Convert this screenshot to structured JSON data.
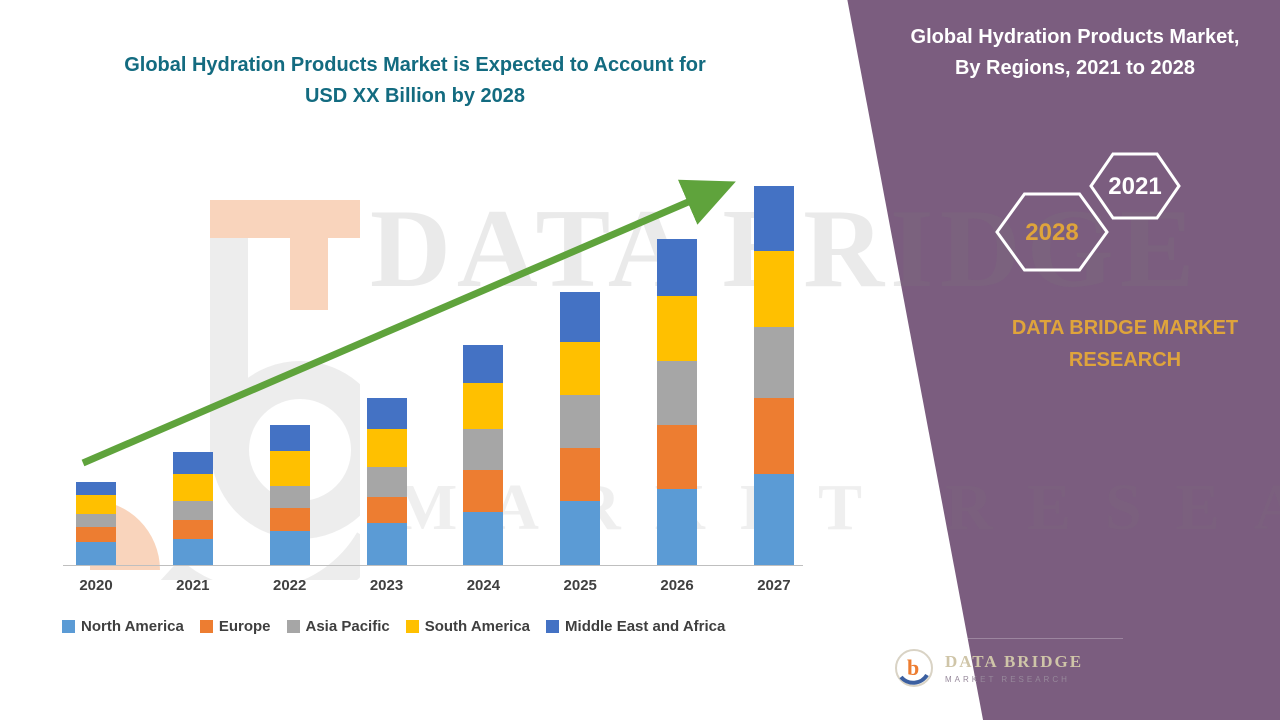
{
  "title": {
    "line1": "Global Hydration Products Market is Expected to Account for",
    "line2": "USD XX Billion by 2028"
  },
  "side_panel": {
    "heading_line1": "Global Hydration Products Market,",
    "heading_line2": "By Regions, 2021 to 2028",
    "hexagons": [
      {
        "label": "2028"
      },
      {
        "label": "2021"
      }
    ],
    "brand_line1": "DATA BRIDGE MARKET",
    "brand_line2": "RESEARCH",
    "logo": {
      "name": "DATA BRIDGE",
      "subtext": "MARKET RESEARCH"
    }
  },
  "watermark": {
    "line1": "DATA BRIDGE",
    "line2": "MARKET RESEARCH"
  },
  "chart_data": {
    "type": "bar",
    "stacked": true,
    "title": "Global Hydration Products Market is Expected to Account for USD XX Billion by 2028",
    "xlabel": "",
    "ylabel": "",
    "categories": [
      "2020",
      "2021",
      "2022",
      "2023",
      "2024",
      "2025",
      "2026",
      "2027"
    ],
    "series": [
      {
        "name": "North America",
        "color": "#5B9BD5",
        "values": [
          6,
          7,
          9,
          11,
          14,
          17,
          20,
          24
        ]
      },
      {
        "name": "Europe",
        "color": "#ED7D31",
        "values": [
          4,
          5,
          6,
          7,
          11,
          14,
          17,
          20
        ]
      },
      {
        "name": "Asia Pacific",
        "color": "#A6A6A6",
        "values": [
          3.5,
          5,
          6,
          8,
          11,
          14,
          17,
          19
        ]
      },
      {
        "name": "South America",
        "color": "#FFC000",
        "values": [
          5,
          7,
          9,
          10,
          12,
          14,
          17,
          20
        ]
      },
      {
        "name": "Middle East and Africa",
        "color": "#4472C4",
        "values": [
          3.5,
          6,
          7,
          8,
          10,
          13,
          15,
          17
        ]
      }
    ],
    "ylim": [
      0,
      103
    ],
    "grid": false,
    "legend_position": "bottom",
    "trend_arrow": true,
    "trend_arrow_color": "#5FA33C",
    "units": "USD Billion (XX — not disclosed)"
  },
  "colors": {
    "panel_bg": "#7B5D7F",
    "title_teal": "#136B80",
    "accent_gold": "#DFA43B"
  }
}
